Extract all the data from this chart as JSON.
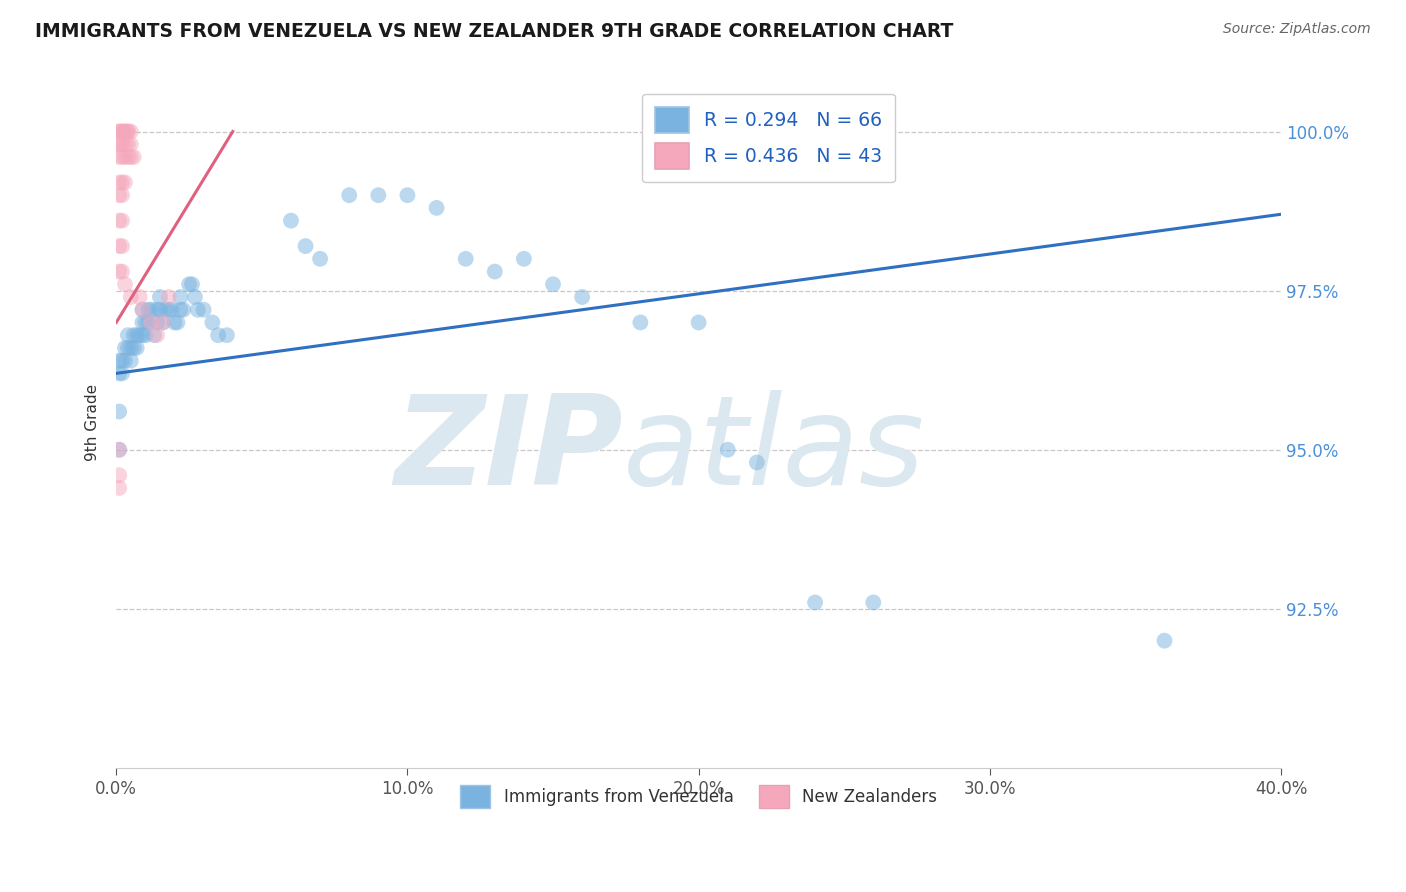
{
  "title": "IMMIGRANTS FROM VENEZUELA VS NEW ZEALANDER 9TH GRADE CORRELATION CHART",
  "source": "Source: ZipAtlas.com",
  "ylabel": "9th Grade",
  "xlim": [
    0.0,
    0.4
  ],
  "ylim": [
    0.9,
    1.0085
  ],
  "xtick_labels": [
    "0.0%",
    "10.0%",
    "20.0%",
    "30.0%",
    "40.0%"
  ],
  "xtick_vals": [
    0.0,
    0.1,
    0.2,
    0.3,
    0.4
  ],
  "ytick_labels": [
    "92.5%",
    "95.0%",
    "97.5%",
    "100.0%"
  ],
  "ytick_vals": [
    0.925,
    0.95,
    0.975,
    1.0
  ],
  "legend_r": [
    "R = 0.294   N = 66",
    "R = 0.436   N = 43"
  ],
  "legend_bottom": [
    "Immigrants from Venezuela",
    "New Zealanders"
  ],
  "blue_scatter": [
    [
      0.001,
      0.964
    ],
    [
      0.001,
      0.962
    ],
    [
      0.002,
      0.962
    ],
    [
      0.002,
      0.964
    ],
    [
      0.003,
      0.964
    ],
    [
      0.003,
      0.966
    ],
    [
      0.004,
      0.966
    ],
    [
      0.004,
      0.968
    ],
    [
      0.005,
      0.964
    ],
    [
      0.005,
      0.966
    ],
    [
      0.006,
      0.966
    ],
    [
      0.006,
      0.968
    ],
    [
      0.007,
      0.966
    ],
    [
      0.007,
      0.968
    ],
    [
      0.008,
      0.968
    ],
    [
      0.009,
      0.968
    ],
    [
      0.009,
      0.97
    ],
    [
      0.009,
      0.972
    ],
    [
      0.01,
      0.968
    ],
    [
      0.01,
      0.97
    ],
    [
      0.011,
      0.97
    ],
    [
      0.011,
      0.972
    ],
    [
      0.012,
      0.972
    ],
    [
      0.013,
      0.968
    ],
    [
      0.014,
      0.97
    ],
    [
      0.014,
      0.972
    ],
    [
      0.015,
      0.972
    ],
    [
      0.015,
      0.974
    ],
    [
      0.016,
      0.97
    ],
    [
      0.017,
      0.972
    ],
    [
      0.018,
      0.972
    ],
    [
      0.019,
      0.972
    ],
    [
      0.02,
      0.97
    ],
    [
      0.021,
      0.97
    ],
    [
      0.022,
      0.972
    ],
    [
      0.022,
      0.974
    ],
    [
      0.023,
      0.972
    ],
    [
      0.025,
      0.976
    ],
    [
      0.026,
      0.976
    ],
    [
      0.027,
      0.974
    ],
    [
      0.028,
      0.972
    ],
    [
      0.03,
      0.972
    ],
    [
      0.033,
      0.97
    ],
    [
      0.035,
      0.968
    ],
    [
      0.038,
      0.968
    ],
    [
      0.001,
      0.95
    ],
    [
      0.001,
      0.956
    ],
    [
      0.06,
      0.986
    ],
    [
      0.065,
      0.982
    ],
    [
      0.07,
      0.98
    ],
    [
      0.08,
      0.99
    ],
    [
      0.09,
      0.99
    ],
    [
      0.1,
      0.99
    ],
    [
      0.11,
      0.988
    ],
    [
      0.12,
      0.98
    ],
    [
      0.13,
      0.978
    ],
    [
      0.14,
      0.98
    ],
    [
      0.15,
      0.976
    ],
    [
      0.16,
      0.974
    ],
    [
      0.18,
      0.97
    ],
    [
      0.2,
      0.97
    ],
    [
      0.21,
      0.95
    ],
    [
      0.22,
      0.948
    ],
    [
      0.24,
      0.926
    ],
    [
      0.26,
      0.926
    ],
    [
      0.36,
      0.92
    ]
  ],
  "pink_scatter": [
    [
      0.0,
      0.998
    ],
    [
      0.001,
      1.0
    ],
    [
      0.001,
      1.0
    ],
    [
      0.002,
      1.0
    ],
    [
      0.002,
      1.0
    ],
    [
      0.003,
      1.0
    ],
    [
      0.003,
      1.0
    ],
    [
      0.004,
      1.0
    ],
    [
      0.004,
      1.0
    ],
    [
      0.005,
      1.0
    ],
    [
      0.001,
      0.998
    ],
    [
      0.002,
      0.998
    ],
    [
      0.003,
      0.998
    ],
    [
      0.004,
      0.998
    ],
    [
      0.005,
      0.998
    ],
    [
      0.001,
      0.996
    ],
    [
      0.002,
      0.996
    ],
    [
      0.003,
      0.996
    ],
    [
      0.004,
      0.996
    ],
    [
      0.005,
      0.996
    ],
    [
      0.006,
      0.996
    ],
    [
      0.001,
      0.992
    ],
    [
      0.002,
      0.992
    ],
    [
      0.003,
      0.992
    ],
    [
      0.001,
      0.99
    ],
    [
      0.002,
      0.99
    ],
    [
      0.001,
      0.986
    ],
    [
      0.002,
      0.986
    ],
    [
      0.001,
      0.982
    ],
    [
      0.002,
      0.982
    ],
    [
      0.001,
      0.978
    ],
    [
      0.002,
      0.978
    ],
    [
      0.003,
      0.976
    ],
    [
      0.005,
      0.974
    ],
    [
      0.008,
      0.974
    ],
    [
      0.009,
      0.972
    ],
    [
      0.012,
      0.97
    ],
    [
      0.014,
      0.968
    ],
    [
      0.016,
      0.97
    ],
    [
      0.018,
      0.974
    ],
    [
      0.001,
      0.95
    ],
    [
      0.001,
      0.946
    ],
    [
      0.001,
      0.944
    ]
  ],
  "blue_line_x": [
    0.0,
    0.4
  ],
  "blue_line_y": [
    0.962,
    0.987
  ],
  "pink_line_x": [
    0.0,
    0.04
  ],
  "pink_line_y": [
    0.97,
    1.0
  ],
  "scatter_size": 130,
  "scatter_alpha": 0.5,
  "blue_color": "#7ab3e0",
  "pink_color": "#f5a8bc",
  "blue_line_color": "#3070c0",
  "pink_line_color": "#e06080",
  "grid_color": "#c8c8c8",
  "watermark_zip": "ZIP",
  "watermark_atlas": "atlas",
  "watermark_color": "#dce8f0",
  "background_color": "#ffffff"
}
